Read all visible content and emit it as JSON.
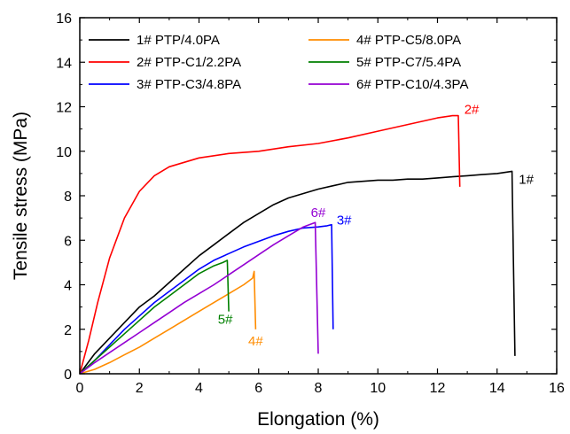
{
  "chart_data": {
    "type": "line",
    "xlabel": "Elongation  (%)",
    "ylabel": "Tensile stress (MPa)",
    "xlim": [
      0,
      16
    ],
    "ylim": [
      0,
      16
    ],
    "xticks": [
      0,
      2,
      4,
      6,
      8,
      10,
      12,
      14,
      16
    ],
    "yticks": [
      0,
      2,
      4,
      6,
      8,
      10,
      12,
      14,
      16
    ],
    "grid": false,
    "legend_position": "top-left, two columns",
    "series": [
      {
        "name": "1# PTP/4.0PA",
        "color": "#000000",
        "annotation": "1#",
        "x": [
          0,
          0.5,
          1,
          1.5,
          2,
          2.5,
          3,
          3.5,
          4,
          4.5,
          5,
          5.5,
          6,
          6.5,
          7,
          7.5,
          8,
          8.5,
          9,
          9.5,
          10,
          10.5,
          11,
          11.5,
          12,
          12.5,
          13,
          13.5,
          14,
          14.5,
          14.55,
          14.6
        ],
        "y": [
          0,
          0.9,
          1.6,
          2.3,
          3.0,
          3.5,
          4.1,
          4.7,
          5.3,
          5.8,
          6.3,
          6.8,
          7.2,
          7.6,
          7.9,
          8.1,
          8.3,
          8.45,
          8.6,
          8.65,
          8.7,
          8.7,
          8.75,
          8.75,
          8.8,
          8.85,
          8.9,
          8.95,
          9.0,
          9.1,
          5.0,
          0.8
        ]
      },
      {
        "name": "2# PTP-C1/2.2PA",
        "color": "#ff0000",
        "annotation": "2#",
        "x": [
          0,
          0.3,
          0.6,
          1,
          1.5,
          2,
          2.5,
          3,
          4,
          5,
          6,
          7,
          8,
          9,
          10,
          11,
          12,
          12.5,
          12.7,
          12.75
        ],
        "y": [
          0,
          1.5,
          3.2,
          5.2,
          7.0,
          8.2,
          8.9,
          9.3,
          9.7,
          9.9,
          10.0,
          10.2,
          10.35,
          10.6,
          10.9,
          11.2,
          11.5,
          11.6,
          11.6,
          8.4
        ]
      },
      {
        "name": "3# PTP-C3/4.8PA",
        "color": "#0000ff",
        "annotation": "3#",
        "x": [
          0,
          0.5,
          1,
          1.5,
          2,
          2.5,
          3,
          3.5,
          4,
          4.5,
          5,
          5.5,
          6,
          6.5,
          7,
          7.5,
          8,
          8.3,
          8.45,
          8.5
        ],
        "y": [
          0,
          0.6,
          1.3,
          2.0,
          2.6,
          3.2,
          3.7,
          4.2,
          4.7,
          5.1,
          5.4,
          5.7,
          5.95,
          6.2,
          6.4,
          6.55,
          6.6,
          6.65,
          6.7,
          2.0
        ]
      },
      {
        "name": "4# PTP-C5/8.0PA",
        "color": "#ff8c00",
        "annotation": "4#",
        "x": [
          0,
          0.5,
          1,
          1.5,
          2,
          2.5,
          3,
          3.5,
          4,
          4.5,
          5,
          5.5,
          5.8,
          5.85,
          5.9
        ],
        "y": [
          0,
          0.2,
          0.5,
          0.85,
          1.2,
          1.6,
          2.0,
          2.4,
          2.8,
          3.2,
          3.6,
          4.0,
          4.3,
          4.6,
          2.0
        ]
      },
      {
        "name": "5# PTP-C7/5.4PA",
        "color": "#008000",
        "annotation": "5#",
        "x": [
          0,
          0.5,
          1,
          1.5,
          2,
          2.5,
          3,
          3.5,
          4,
          4.5,
          4.8,
          4.95,
          5.0
        ],
        "y": [
          0,
          0.6,
          1.2,
          1.8,
          2.4,
          3.0,
          3.5,
          4.0,
          4.5,
          4.85,
          5.0,
          5.1,
          2.8
        ]
      },
      {
        "name": "6# PTP-C10/4.3PA",
        "color": "#9400d3",
        "annotation": "6#",
        "x": [
          0,
          0.5,
          1,
          1.5,
          2,
          2.5,
          3,
          3.5,
          4,
          4.5,
          5,
          5.5,
          6,
          6.5,
          7,
          7.5,
          7.9,
          8.0
        ],
        "y": [
          0,
          0.5,
          0.95,
          1.4,
          1.85,
          2.3,
          2.75,
          3.2,
          3.6,
          4.0,
          4.45,
          4.9,
          5.35,
          5.8,
          6.2,
          6.6,
          6.8,
          0.9
        ]
      }
    ]
  }
}
